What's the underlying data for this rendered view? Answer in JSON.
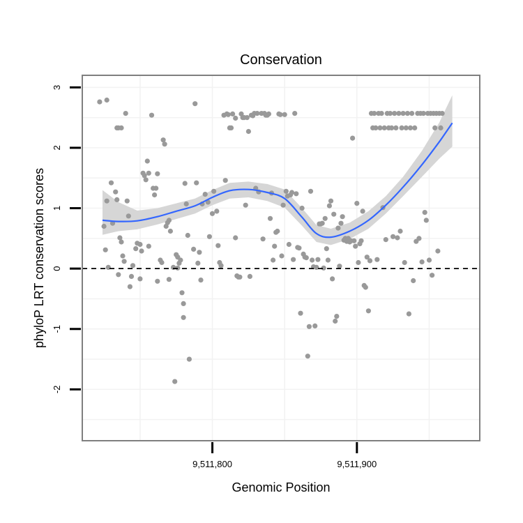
{
  "chart_data": {
    "type": "scatter",
    "title": "Conservation",
    "xlabel": "Genomic Position",
    "ylabel": "phyloP LRT conservation scores",
    "xlim": [
      9511710,
      9511985
    ],
    "ylim": [
      -2.85,
      3.2
    ],
    "x_ticks": [
      {
        "value": 9511800,
        "label": "9,511,800"
      },
      {
        "value": 9511900,
        "label": "9,511,900"
      }
    ],
    "y_ticks": [
      {
        "value": -2,
        "label": "-2"
      },
      {
        "value": -1,
        "label": "-1"
      },
      {
        "value": 0,
        "label": "0"
      },
      {
        "value": 1,
        "label": "1"
      },
      {
        "value": 2,
        "label": "2"
      },
      {
        "value": 3,
        "label": "3"
      }
    ],
    "reference_line": {
      "y": 0,
      "style": "dashed"
    },
    "grid": true,
    "colors": {
      "points": "#999999",
      "smooth": "#3366ff",
      "ribbon": "#d6d6d6",
      "reference": "#000000",
      "panel_border": "#7f7f7f",
      "grid": "#f2f2f2"
    },
    "points": [
      [
        9511722,
        2.76
      ],
      [
        9511727,
        2.79
      ],
      [
        9511734,
        2.33
      ],
      [
        9511737,
        2.33
      ],
      [
        9511740,
        2.57
      ],
      [
        9511735,
        2.33
      ],
      [
        9511725,
        0.7
      ],
      [
        9511726,
        0.31
      ],
      [
        9511727,
        1.12
      ],
      [
        9511728,
        0.02
      ],
      [
        9511730,
        1.42
      ],
      [
        9511731,
        0.75
      ],
      [
        9511733,
        1.27
      ],
      [
        9511734,
        1.14
      ],
      [
        9511736,
        0.51
      ],
      [
        9511735,
        -0.1
      ],
      [
        9511737,
        0.44
      ],
      [
        9511738,
        0.21
      ],
      [
        9511739,
        0.12
      ],
      [
        9511741,
        1.12
      ],
      [
        9511742,
        0.87
      ],
      [
        9511743,
        -0.3
      ],
      [
        9511744,
        -0.13
      ],
      [
        9511745,
        0.05
      ],
      [
        9511747,
        0.33
      ],
      [
        9511748,
        0.42
      ],
      [
        9511750,
        0.4
      ],
      [
        9511750,
        -0.17
      ],
      [
        9511751,
        0.29
      ],
      [
        9511752,
        1.58
      ],
      [
        9511753,
        1.54
      ],
      [
        9511754,
        1.47
      ],
      [
        9511755,
        1.78
      ],
      [
        9511756,
        0.37
      ],
      [
        9511756,
        1.58
      ],
      [
        9511758,
        2.54
      ],
      [
        9511759,
        1.33
      ],
      [
        9511760,
        1.22
      ],
      [
        9511761,
        1.33
      ],
      [
        9511762,
        1.57
      ],
      [
        9511762,
        -0.21
      ],
      [
        9511764,
        0.14
      ],
      [
        9511765,
        0.1
      ],
      [
        9511766,
        2.13
      ],
      [
        9511767,
        2.06
      ],
      [
        9511768,
        0.7
      ],
      [
        9511769,
        0.76
      ],
      [
        9511770,
        0.8
      ],
      [
        9511770,
        -0.18
      ],
      [
        9511771,
        0.62
      ],
      [
        9511773,
        0.02
      ],
      [
        9511775,
        0.23
      ],
      [
        9511776,
        0.19
      ],
      [
        9511777,
        0.09
      ],
      [
        9511778,
        0.14
      ],
      [
        9511779,
        -0.4
      ],
      [
        9511780,
        -0.58
      ],
      [
        9511780,
        -0.81
      ],
      [
        9511781,
        1.41
      ],
      [
        9511782,
        1.07
      ],
      [
        9511783,
        0.55
      ],
      [
        9511784,
        -1.5
      ],
      [
        9511774,
        -1.87
      ],
      [
        9511776,
        0.01
      ],
      [
        9511787,
        0.32
      ],
      [
        9511788,
        2.73
      ],
      [
        9511789,
        1.42
      ],
      [
        9511790,
        0.09
      ],
      [
        9511791,
        0.27
      ],
      [
        9511792,
        -0.19
      ],
      [
        9511793,
        1.07
      ],
      [
        9511795,
        1.23
      ],
      [
        9511797,
        1.1
      ],
      [
        9511798,
        0.53
      ],
      [
        9511800,
        0.91
      ],
      [
        9511801,
        1.28
      ],
      [
        9511803,
        0.95
      ],
      [
        9511804,
        0.38
      ],
      [
        9511805,
        0.1
      ],
      [
        9511806,
        0.05
      ],
      [
        9511808,
        2.54
      ],
      [
        9511809,
        1.46
      ],
      [
        9511810,
        2.56
      ],
      [
        9511811,
        2.55
      ],
      [
        9511812,
        2.33
      ],
      [
        9511813,
        2.33
      ],
      [
        9511814,
        2.56
      ],
      [
        9511816,
        2.49
      ],
      [
        9511816,
        0.51
      ],
      [
        9511817,
        -0.12
      ],
      [
        9511818,
        -0.14
      ],
      [
        9511819,
        -0.14
      ],
      [
        9511820,
        2.56
      ],
      [
        9511821,
        2.5
      ],
      [
        9511822,
        2.5
      ],
      [
        9511823,
        1.05
      ],
      [
        9511824,
        2.5
      ],
      [
        9511825,
        2.27
      ],
      [
        9511826,
        -0.13
      ],
      [
        9511827,
        2.54
      ],
      [
        9511828,
        2.53
      ],
      [
        9511829,
        2.57
      ],
      [
        9511830,
        1.33
      ],
      [
        9511831,
        2.57
      ],
      [
        9511832,
        1.27
      ],
      [
        9511834,
        2.57
      ],
      [
        9511835,
        0.49
      ],
      [
        9511836,
        2.57
      ],
      [
        9511837,
        2.54
      ],
      [
        9511838,
        2.54
      ],
      [
        9511839,
        2.56
      ],
      [
        9511840,
        0.83
      ],
      [
        9511841,
        1.25
      ],
      [
        9511842,
        0.14
      ],
      [
        9511843,
        0.37
      ],
      [
        9511844,
        0.6
      ],
      [
        9511845,
        0.62
      ],
      [
        9511846,
        2.56
      ],
      [
        9511847,
        2.55
      ],
      [
        9511848,
        0.21
      ],
      [
        9511849,
        1.05
      ],
      [
        9511850,
        2.55
      ],
      [
        9511851,
        1.28
      ],
      [
        9511852,
        1.2
      ],
      [
        9511853,
        0.4
      ],
      [
        9511854,
        1.22
      ],
      [
        9511855,
        1.26
      ],
      [
        9511856,
        0.15
      ],
      [
        9511857,
        2.57
      ],
      [
        9511858,
        1.24
      ],
      [
        9511859,
        0.35
      ],
      [
        9511860,
        0.34
      ],
      [
        9511861,
        -0.74
      ],
      [
        9511862,
        1.0
      ],
      [
        9511863,
        0.24
      ],
      [
        9511864,
        0.19
      ],
      [
        9511865,
        0.18
      ],
      [
        9511866,
        -1.45
      ],
      [
        9511867,
        -0.96
      ],
      [
        9511868,
        1.28
      ],
      [
        9511869,
        0.14
      ],
      [
        9511870,
        0.03
      ],
      [
        9511871,
        -0.95
      ],
      [
        9511872,
        0.02
      ],
      [
        9511873,
        0.15
      ],
      [
        9511874,
        0.74
      ],
      [
        9511875,
        0.74
      ],
      [
        9511876,
        0.75
      ],
      [
        9511877,
        0.01
      ],
      [
        9511878,
        0.83
      ],
      [
        9511879,
        0.33
      ],
      [
        9511880,
        0.14
      ],
      [
        9511881,
        1.04
      ],
      [
        9511882,
        1.12
      ],
      [
        9511883,
        -0.17
      ],
      [
        9511884,
        0.9
      ],
      [
        9511885,
        -0.87
      ],
      [
        9511886,
        -0.79
      ],
      [
        9511887,
        0.67
      ],
      [
        9511888,
        0.04
      ],
      [
        9511889,
        0.75
      ],
      [
        9511890,
        0.86
      ],
      [
        9511891,
        0.47
      ],
      [
        9511892,
        0.5
      ],
      [
        9511893,
        0.45
      ],
      [
        9511894,
        0.5
      ],
      [
        9511895,
        0.44
      ],
      [
        9511896,
        0.46
      ],
      [
        9511897,
        2.16
      ],
      [
        9511898,
        0.46
      ],
      [
        9511899,
        0.37
      ],
      [
        9511900,
        1.08
      ],
      [
        9511901,
        0.1
      ],
      [
        9511902,
        0.41
      ],
      [
        9511903,
        0.46
      ],
      [
        9511904,
        0.95
      ],
      [
        9511905,
        -0.28
      ],
      [
        9511906,
        -0.31
      ],
      [
        9511907,
        0.19
      ],
      [
        9511908,
        -0.7
      ],
      [
        9511909,
        0.13
      ],
      [
        9511910,
        2.57
      ],
      [
        9511911,
        2.33
      ],
      [
        9511912,
        2.57
      ],
      [
        9511913,
        2.33
      ],
      [
        9511914,
        0.15
      ],
      [
        9511915,
        2.57
      ],
      [
        9511916,
        2.33
      ],
      [
        9511917,
        2.57
      ],
      [
        9511918,
        1.01
      ],
      [
        9511919,
        2.33
      ],
      [
        9511920,
        0.48
      ],
      [
        9511921,
        2.57
      ],
      [
        9511922,
        2.33
      ],
      [
        9511923,
        2.57
      ],
      [
        9511924,
        2.33
      ],
      [
        9511925,
        0.53
      ],
      [
        9511926,
        2.57
      ],
      [
        9511927,
        2.33
      ],
      [
        9511928,
        0.51
      ],
      [
        9511929,
        2.57
      ],
      [
        9511930,
        0.62
      ],
      [
        9511931,
        2.33
      ],
      [
        9511932,
        2.57
      ],
      [
        9511933,
        0.1
      ],
      [
        9511934,
        2.33
      ],
      [
        9511935,
        2.57
      ],
      [
        9511936,
        -0.75
      ],
      [
        9511937,
        2.33
      ],
      [
        9511938,
        2.57
      ],
      [
        9511939,
        -0.2
      ],
      [
        9511940,
        2.33
      ],
      [
        9511941,
        0.45
      ],
      [
        9511942,
        2.57
      ],
      [
        9511943,
        0.5
      ],
      [
        9511944,
        2.57
      ],
      [
        9511945,
        0.11
      ],
      [
        9511946,
        2.57
      ],
      [
        9511947,
        0.93
      ],
      [
        9511948,
        0.8
      ],
      [
        9511949,
        2.57
      ],
      [
        9511950,
        0.14
      ],
      [
        9511951,
        2.57
      ],
      [
        9511952,
        -0.11
      ],
      [
        9511953,
        2.57
      ],
      [
        9511954,
        2.33
      ],
      [
        9511955,
        2.57
      ],
      [
        9511956,
        0.29
      ],
      [
        9511957,
        2.57
      ],
      [
        9511958,
        2.33
      ],
      [
        9511959,
        2.57
      ]
    ],
    "smooth": [
      {
        "x": 9511724,
        "y": 0.8,
        "lo": 0.56,
        "hi": 1.3
      },
      {
        "x": 9511735,
        "y": 0.78,
        "lo": 0.62,
        "hi": 1.1
      },
      {
        "x": 9511748,
        "y": 0.79,
        "lo": 0.65,
        "hi": 0.96
      },
      {
        "x": 9511762,
        "y": 0.86,
        "lo": 0.73,
        "hi": 1.0
      },
      {
        "x": 9511775,
        "y": 0.95,
        "lo": 0.82,
        "hi": 1.08
      },
      {
        "x": 9511788,
        "y": 1.04,
        "lo": 0.91,
        "hi": 1.16
      },
      {
        "x": 9511800,
        "y": 1.18,
        "lo": 1.05,
        "hi": 1.3
      },
      {
        "x": 9511812,
        "y": 1.29,
        "lo": 1.16,
        "hi": 1.42
      },
      {
        "x": 9511825,
        "y": 1.31,
        "lo": 1.18,
        "hi": 1.44
      },
      {
        "x": 9511838,
        "y": 1.26,
        "lo": 1.12,
        "hi": 1.4
      },
      {
        "x": 9511850,
        "y": 1.16,
        "lo": 1.01,
        "hi": 1.31
      },
      {
        "x": 9511862,
        "y": 0.85,
        "lo": 0.71,
        "hi": 1.0
      },
      {
        "x": 9511872,
        "y": 0.58,
        "lo": 0.44,
        "hi": 0.72
      },
      {
        "x": 9511882,
        "y": 0.52,
        "lo": 0.39,
        "hi": 0.66
      },
      {
        "x": 9511895,
        "y": 0.62,
        "lo": 0.49,
        "hi": 0.76
      },
      {
        "x": 9511908,
        "y": 0.8,
        "lo": 0.66,
        "hi": 0.95
      },
      {
        "x": 9511920,
        "y": 1.05,
        "lo": 0.91,
        "hi": 1.2
      },
      {
        "x": 9511932,
        "y": 1.35,
        "lo": 1.2,
        "hi": 1.52
      },
      {
        "x": 9511945,
        "y": 1.72,
        "lo": 1.52,
        "hi": 1.95
      },
      {
        "x": 9511957,
        "y": 2.1,
        "lo": 1.82,
        "hi": 2.42
      },
      {
        "x": 9511966,
        "y": 2.41,
        "lo": 2.02,
        "hi": 2.87
      }
    ]
  }
}
